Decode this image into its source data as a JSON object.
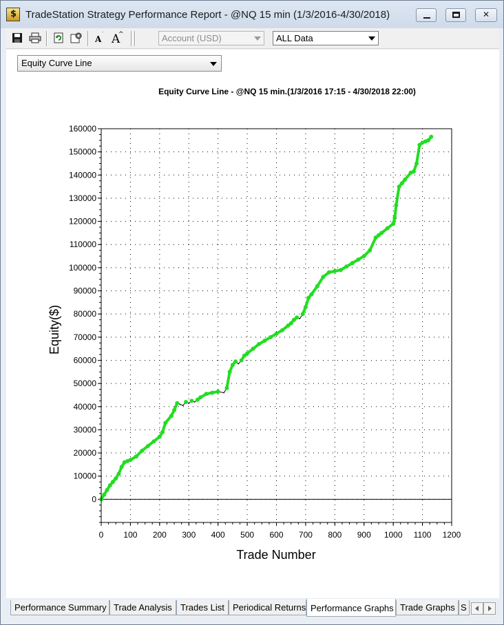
{
  "window": {
    "title": "TradeStation Strategy Performance Report - @NQ 15 min (1/3/2016-4/30/2018)"
  },
  "toolbar": {
    "icons": [
      "save-icon",
      "print-icon",
      "refresh-icon",
      "settings-icon",
      "font-decrease-icon",
      "font-increase-icon"
    ],
    "account_select": "Account (USD)",
    "data_select": "ALL Data"
  },
  "graph_selector": {
    "selected": "Equity Curve Line"
  },
  "chart_data": {
    "type": "line",
    "title": "Equity Curve Line - @NQ 15 min.(1/3/2016 17:15 - 4/30/2018 22:00)",
    "xlabel": "Trade Number",
    "ylabel": "Equity($)",
    "xlim": [
      0,
      1200
    ],
    "ylim": [
      -10000,
      160000
    ],
    "x_ticks": [
      0,
      100,
      200,
      300,
      400,
      500,
      600,
      700,
      800,
      900,
      1000,
      1100,
      1200
    ],
    "y_ticks": [
      0,
      10000,
      20000,
      30000,
      40000,
      50000,
      60000,
      70000,
      80000,
      90000,
      100000,
      110000,
      120000,
      130000,
      140000,
      150000,
      160000
    ],
    "grid": true,
    "colors": {
      "new_high_marker": "#22dd22",
      "line": "#000000"
    },
    "series": [
      {
        "x": [
          0,
          10,
          20,
          30,
          40,
          50,
          60,
          70,
          80,
          90,
          100,
          120,
          140,
          160,
          180,
          200,
          210,
          220,
          240,
          250,
          260,
          270,
          280,
          290,
          300,
          310,
          320,
          330,
          340,
          360,
          380,
          400,
          420,
          430,
          440,
          450,
          460,
          470,
          480,
          490,
          500,
          520,
          540,
          560,
          580,
          600,
          620,
          640,
          650,
          660,
          670,
          680,
          690,
          700,
          710,
          720,
          740,
          760,
          780,
          800,
          820,
          840,
          860,
          880,
          900,
          920,
          940,
          950,
          960,
          980,
          1000,
          1005,
          1010,
          1020,
          1030,
          1040,
          1060,
          1070,
          1080,
          1090,
          1100,
          1110,
          1120,
          1130
        ],
        "values": [
          0,
          2000,
          4000,
          6000,
          7500,
          9000,
          11000,
          14000,
          16000,
          16500,
          17000,
          18500,
          21000,
          23000,
          25000,
          27000,
          29000,
          33000,
          36000,
          38500,
          41500,
          41000,
          40500,
          42000,
          41500,
          42500,
          42000,
          43000,
          44000,
          45500,
          46000,
          46500,
          46000,
          48000,
          55000,
          58000,
          59500,
          58500,
          60000,
          62000,
          63000,
          65000,
          67000,
          68500,
          70000,
          71500,
          73000,
          75000,
          76000,
          77500,
          78500,
          78000,
          80000,
          83000,
          87000,
          88500,
          92000,
          96000,
          98000,
          98500,
          99000,
          100500,
          102000,
          103500,
          105000,
          107500,
          113000,
          114000,
          115000,
          117000,
          119000,
          121500,
          127000,
          135000,
          136500,
          138000,
          141000,
          141500,
          145000,
          153000,
          154000,
          154500,
          155000,
          156500
        ]
      }
    ]
  },
  "tabs": [
    {
      "label": "Performance Summary"
    },
    {
      "label": "Trade Analysis"
    },
    {
      "label": "Trades List"
    },
    {
      "label": "Periodical Returns"
    },
    {
      "label": "Performance Graphs"
    },
    {
      "label": "Trade Graphs"
    },
    {
      "label": "S"
    }
  ]
}
